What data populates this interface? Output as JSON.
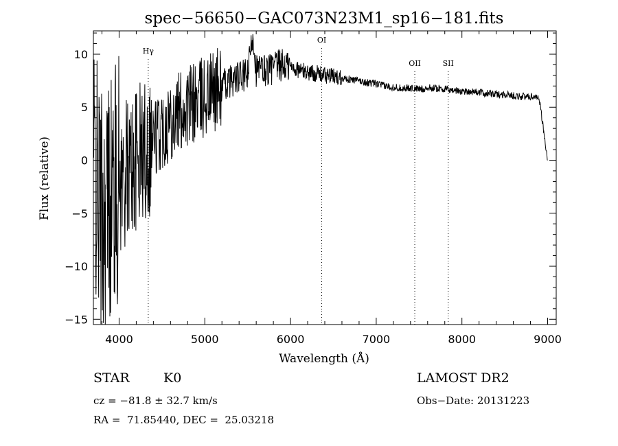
{
  "chart_data": {
    "type": "line",
    "title": "spec−56650−GAC073N23M1_sp16−181.fits",
    "xlabel": "Wavelength (Å)",
    "ylabel": "Flux (relative)",
    "xlim": [
      3700,
      9100
    ],
    "ylim": [
      -15.5,
      12.2
    ],
    "xticks": [
      4000,
      5000,
      6000,
      7000,
      8000,
      9000
    ],
    "yticks": [
      -15,
      -10,
      -5,
      0,
      5,
      10
    ],
    "grid": false,
    "legend": "none",
    "lines": [
      {
        "label": "Hγ",
        "x": 4340
      },
      {
        "label": "OI",
        "x": 6364
      },
      {
        "label": "OII",
        "x": 7450
      },
      {
        "label": "SII",
        "x": 7840
      }
    ],
    "series": [
      {
        "x": [
          3700,
          3750,
          3800,
          3850,
          3900,
          3950,
          4000,
          4100,
          4200,
          4300,
          4400,
          4500,
          4600,
          4700,
          4800,
          4900,
          5000,
          5100,
          5200,
          5300,
          5400,
          5500,
          5560,
          5600,
          5700,
          5800,
          5900,
          6000,
          6100,
          6200,
          6300,
          6400,
          6500,
          6600,
          6700,
          6800,
          6900,
          7000,
          7100,
          7200,
          7300,
          7400,
          7500,
          7600,
          7700,
          7800,
          7900,
          8000,
          8100,
          8200,
          8300,
          8400,
          8500,
          8600,
          8700,
          8800,
          8900,
          9000
        ],
        "y": [
          0.0,
          -3.0,
          -5.0,
          -4.0,
          -3.0,
          -2.5,
          -2.0,
          -1.0,
          0.0,
          1.0,
          2.0,
          3.0,
          4.0,
          4.5,
          5.0,
          5.5,
          6.0,
          6.5,
          7.0,
          7.5,
          7.8,
          8.0,
          12.0,
          8.5,
          8.5,
          8.7,
          9.0,
          8.8,
          8.5,
          8.3,
          8.2,
          8.0,
          7.9,
          7.8,
          7.6,
          7.5,
          7.3,
          7.2,
          7.0,
          6.9,
          6.8,
          6.8,
          6.7,
          6.8,
          6.8,
          6.7,
          6.6,
          6.5,
          6.5,
          6.4,
          6.3,
          6.2,
          6.2,
          6.1,
          6.0,
          6.0,
          6.0,
          0.0
        ]
      }
    ]
  },
  "info": {
    "object_class": "STAR",
    "subclass": "K0",
    "redshift": "cz = −81.8 ± 32.7 km/s",
    "coords": "RA =  71.85440, DEC =  25.03218",
    "survey": "LAMOST DR2",
    "obs_date": "Obs−Date: 20131223"
  }
}
